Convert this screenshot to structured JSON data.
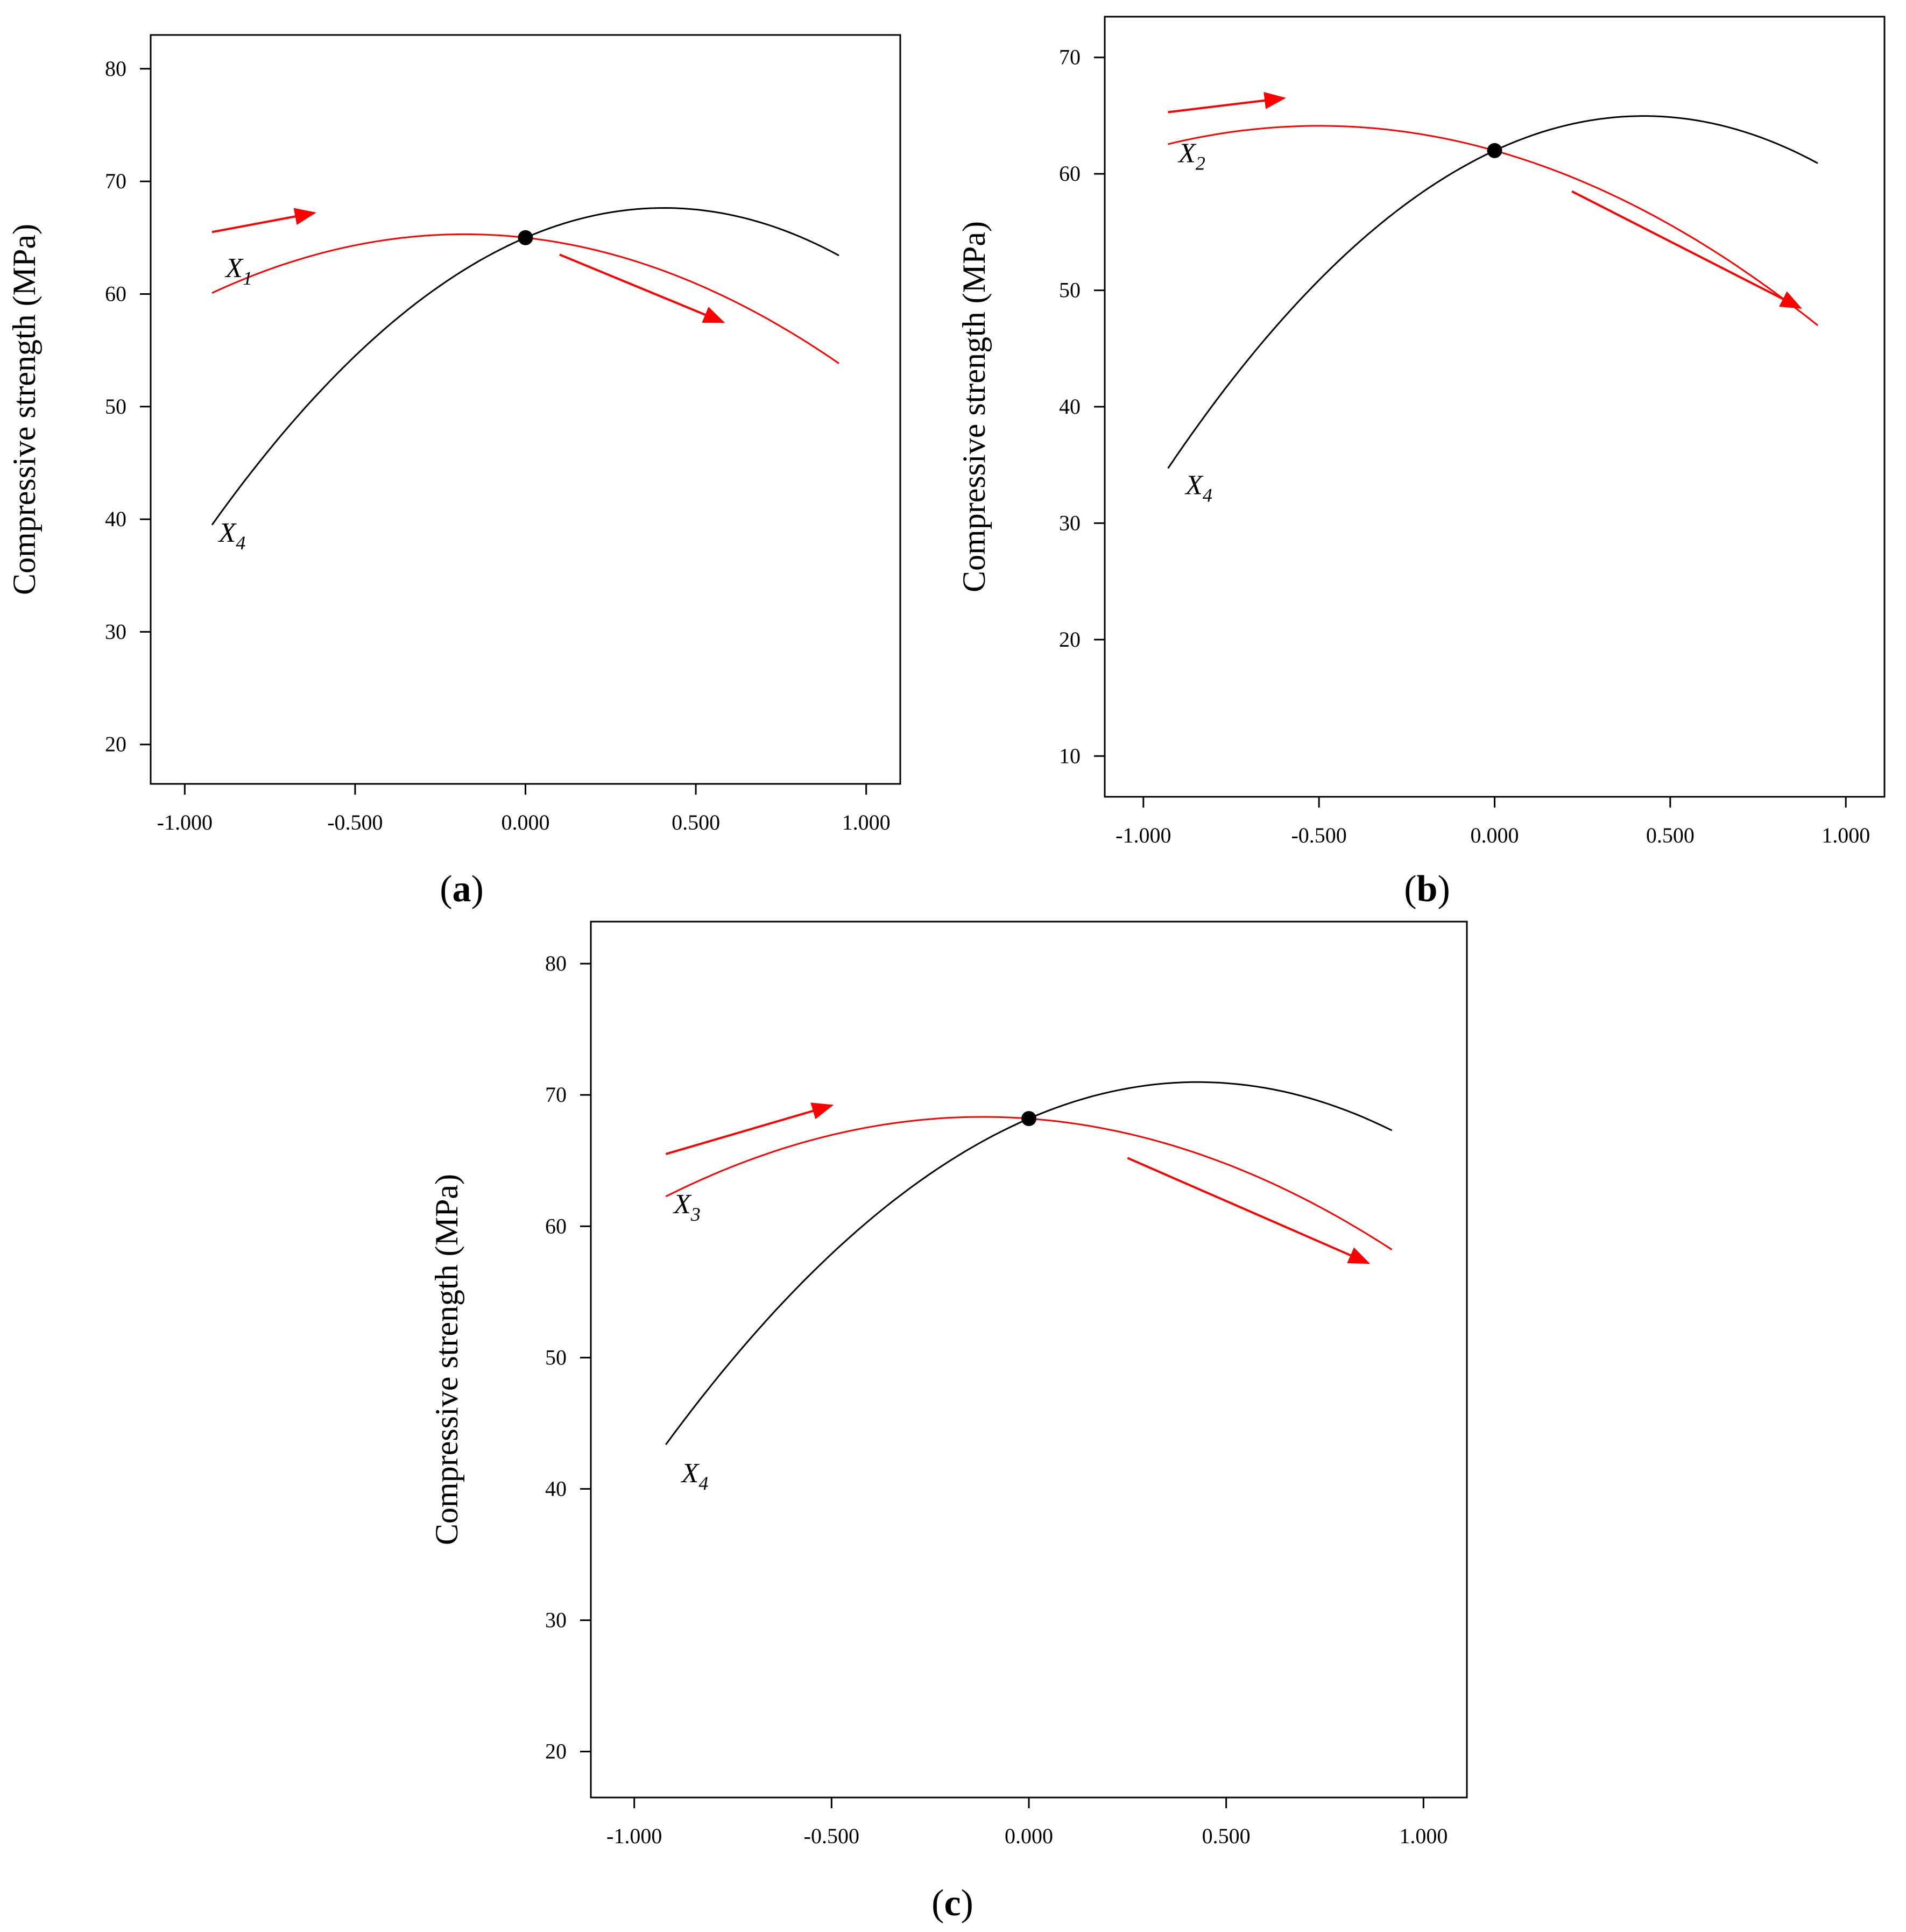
{
  "colors": {
    "factor": "#ff0000",
    "x4": "#000000",
    "frame": "#000000",
    "background": "#ffffff"
  },
  "chart_data": [
    {
      "id": "a",
      "type": "line",
      "panel_label": "a",
      "ylabel": "Compressive strength (MPa)",
      "xlabel": "",
      "xlim": [
        -1.1,
        1.1
      ],
      "ylim": [
        16.5,
        83
      ],
      "xticks": [
        -1.0,
        -0.5,
        0.0,
        0.5,
        1.0
      ],
      "xtick_labels": [
        "-1.000",
        "-0.500",
        "0.000",
        "0.500",
        "1.000"
      ],
      "yticks": [
        20,
        30,
        40,
        50,
        60,
        70,
        80
      ],
      "ytick_labels": [
        "20",
        "30",
        "40",
        "50",
        "60",
        "70",
        "80"
      ],
      "x_range": [
        -0.92,
        0.92
      ],
      "series": [
        {
          "name": "X1",
          "label_main": "X",
          "label_sub": "1",
          "color": "red",
          "coeffs": [
            65.0,
            -3.4,
            -9.5
          ],
          "label_at": [
            -0.88,
            61.5
          ]
        },
        {
          "name": "X4",
          "label_main": "X",
          "label_sub": "4",
          "color": "black",
          "coeffs": [
            65.0,
            13.0,
            -16.0
          ],
          "label_at": [
            -0.9,
            38.0
          ]
        }
      ],
      "center_point": [
        0.0,
        65.0
      ],
      "arrows": [
        {
          "from": [
            -0.92,
            65.5
          ],
          "to": [
            -0.62,
            67.2
          ]
        },
        {
          "from": [
            0.1,
            63.5
          ],
          "to": [
            0.58,
            57.5
          ]
        }
      ]
    },
    {
      "id": "b",
      "type": "line",
      "panel_label": "b",
      "ylabel": "Compressive strength (MPa)",
      "xlabel": "",
      "xlim": [
        -1.11,
        1.11
      ],
      "ylim": [
        6.5,
        73.5
      ],
      "xticks": [
        -1.0,
        -0.5,
        0.0,
        0.5,
        1.0
      ],
      "xtick_labels": [
        "-1.000",
        "-0.500",
        "0.000",
        "0.500",
        "1.000"
      ],
      "yticks": [
        10,
        20,
        30,
        40,
        50,
        60,
        70
      ],
      "ytick_labels": [
        "10",
        "20",
        "30",
        "40",
        "50",
        "60",
        "70"
      ],
      "x_range": [
        -0.93,
        0.92
      ],
      "series": [
        {
          "name": "X2",
          "label_main": "X",
          "label_sub": "2",
          "color": "red",
          "coeffs": [
            62.0,
            -8.5,
            -8.5
          ],
          "label_at": [
            -0.9,
            61.0
          ]
        },
        {
          "name": "X4",
          "label_main": "X",
          "label_sub": "4",
          "color": "black",
          "coeffs": [
            62.0,
            14.0,
            -16.5
          ],
          "label_at": [
            -0.88,
            32.5
          ]
        }
      ],
      "center_point": [
        0.0,
        62.0
      ],
      "arrows": [
        {
          "from": [
            -0.93,
            65.3
          ],
          "to": [
            -0.6,
            66.5
          ]
        },
        {
          "from": [
            0.22,
            58.5
          ],
          "to": [
            0.87,
            48.5
          ]
        }
      ]
    },
    {
      "id": "c",
      "type": "line",
      "panel_label": "c",
      "ylabel": "Compressive strength (MPa)",
      "xlabel": "",
      "xlim": [
        -1.11,
        1.11
      ],
      "ylim": [
        16.5,
        83.2
      ],
      "xticks": [
        -1.0,
        -0.5,
        0.0,
        0.5,
        1.0
      ],
      "xtick_labels": [
        "-1.000",
        "-0.500",
        "0.000",
        "0.500",
        "1.000"
      ],
      "yticks": [
        20,
        30,
        40,
        50,
        60,
        70,
        80
      ],
      "ytick_labels": [
        "20",
        "30",
        "40",
        "50",
        "60",
        "70",
        "80"
      ],
      "x_range": [
        -0.92,
        0.92
      ],
      "series": [
        {
          "name": "X3",
          "label_main": "X",
          "label_sub": "3",
          "color": "red",
          "coeffs": [
            68.2,
            -2.2,
            -9.4
          ],
          "label_at": [
            -0.9,
            61.0
          ]
        },
        {
          "name": "X4",
          "label_main": "X",
          "label_sub": "4",
          "color": "black",
          "coeffs": [
            68.2,
            13.0,
            -15.2
          ],
          "label_at": [
            -0.88,
            40.5
          ]
        }
      ],
      "center_point": [
        0.0,
        68.2
      ],
      "arrows": [
        {
          "from": [
            -0.92,
            65.5
          ],
          "to": [
            -0.5,
            69.2
          ]
        },
        {
          "from": [
            0.25,
            65.2
          ],
          "to": [
            0.86,
            57.2
          ]
        }
      ]
    }
  ]
}
